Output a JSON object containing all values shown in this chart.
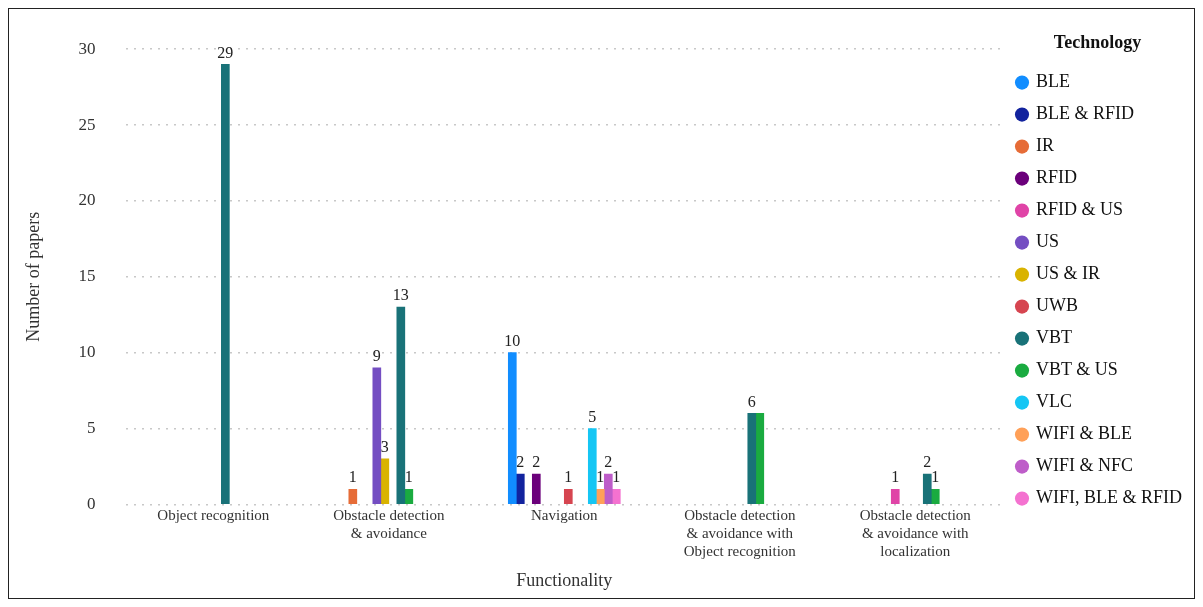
{
  "chart_data": {
    "type": "bar",
    "xlabel": "Functionality",
    "ylabel": "Number of papers",
    "legend_title": "Technology",
    "legend": "right",
    "categories": [
      "Object recognition",
      "Obstacle detection & avoidance",
      "Navigation",
      "Obstacle detection & avoidance with Object recognition",
      "Obstacle detection & avoidance with localization"
    ],
    "ylim": [
      0,
      30
    ],
    "yticks": [
      0,
      5,
      10,
      15,
      20,
      25,
      30
    ],
    "grid": "y",
    "series": [
      {
        "name": "BLE",
        "color": "#118dff",
        "values": [
          null,
          null,
          10,
          null,
          null
        ],
        "value_labels": [
          null,
          null,
          "10",
          null,
          null
        ]
      },
      {
        "name": "BLE & RFID",
        "color": "#12239e",
        "values": [
          null,
          null,
          2,
          null,
          null
        ],
        "value_labels": [
          null,
          null,
          "2",
          null,
          null
        ]
      },
      {
        "name": "IR",
        "color": "#e66c37",
        "values": [
          null,
          1,
          null,
          null,
          null
        ],
        "value_labels": [
          null,
          "1",
          null,
          null,
          null
        ]
      },
      {
        "name": "RFID",
        "color": "#6b007b",
        "values": [
          null,
          null,
          2,
          null,
          null
        ],
        "value_labels": [
          null,
          null,
          "2",
          null,
          null
        ]
      },
      {
        "name": "RFID & US",
        "color": "#e044a7",
        "values": [
          null,
          null,
          null,
          null,
          1
        ],
        "value_labels": [
          null,
          null,
          null,
          null,
          "1"
        ]
      },
      {
        "name": "US",
        "color": "#744ec2",
        "values": [
          null,
          9,
          null,
          null,
          null
        ],
        "value_labels": [
          null,
          "9",
          null,
          null,
          null
        ]
      },
      {
        "name": "US & IR",
        "color": "#d9b300",
        "values": [
          null,
          3,
          null,
          null,
          null
        ],
        "value_labels": [
          null,
          "3",
          null,
          null,
          null
        ]
      },
      {
        "name": "UWB",
        "color": "#d64550",
        "values": [
          null,
          null,
          1,
          null,
          null
        ],
        "value_labels": [
          null,
          null,
          "1",
          null,
          null
        ]
      },
      {
        "name": "VBT",
        "color": "#197278",
        "values": [
          29,
          13,
          null,
          6,
          2
        ],
        "value_labels": [
          "29",
          "13",
          null,
          "6",
          "2"
        ]
      },
      {
        "name": "VBT & US",
        "color": "#1aab40",
        "values": [
          null,
          1,
          null,
          6,
          1
        ],
        "value_labels": [
          null,
          "1",
          null,
          null,
          "1"
        ]
      },
      {
        "name": "VLC",
        "color": "#15c6f4",
        "values": [
          null,
          null,
          5,
          null,
          null
        ],
        "value_labels": [
          null,
          null,
          "5",
          null,
          null
        ]
      },
      {
        "name": "WIFI & BLE",
        "color": "#ffa058",
        "values": [
          null,
          null,
          1,
          null,
          null
        ],
        "value_labels": [
          null,
          null,
          "1",
          null,
          null
        ]
      },
      {
        "name": "WIFI & NFC",
        "color": "#be5dc9",
        "values": [
          null,
          null,
          2,
          null,
          null
        ],
        "value_labels": [
          null,
          null,
          "2",
          null,
          null
        ]
      },
      {
        "name": "WIFI, BLE & RFID",
        "color": "#f472d0",
        "values": [
          null,
          null,
          1,
          null,
          null
        ],
        "value_labels": [
          null,
          null,
          "1",
          null,
          null
        ]
      }
    ]
  }
}
